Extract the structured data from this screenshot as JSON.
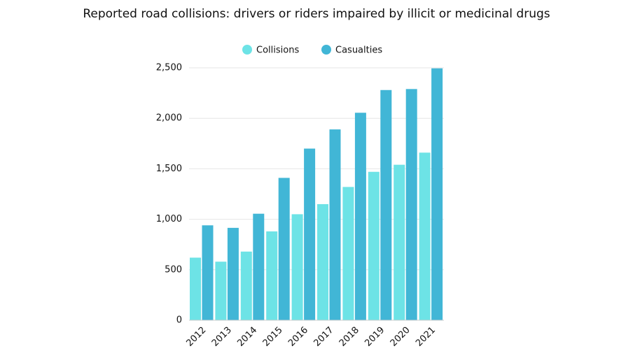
{
  "chart_data": {
    "type": "bar",
    "title": "Reported road collisions: drivers or riders impaired by illicit or medicinal drugs",
    "categories": [
      "2012",
      "2013",
      "2014",
      "2015",
      "2016",
      "2017",
      "2018",
      "2019",
      "2020",
      "2021"
    ],
    "series": [
      {
        "name": "Collisions",
        "color": "#6de3e6",
        "values": [
          620,
          580,
          680,
          880,
          1050,
          1150,
          1320,
          1470,
          1540,
          1660
        ]
      },
      {
        "name": "Casualties",
        "color": "#41b6d6",
        "values": [
          940,
          915,
          1055,
          1410,
          1700,
          1890,
          2055,
          2280,
          2290,
          2495
        ]
      }
    ],
    "ylim": [
      0,
      2500
    ],
    "yticks": [
      0,
      500,
      {
        "value": 1000,
        "label": "1,000"
      },
      {
        "value": 1500,
        "label": "1,500"
      },
      {
        "value": 2000,
        "label": "2,000"
      },
      {
        "value": 2500,
        "label": "2,500"
      }
    ],
    "grid": true,
    "legend": "top"
  }
}
